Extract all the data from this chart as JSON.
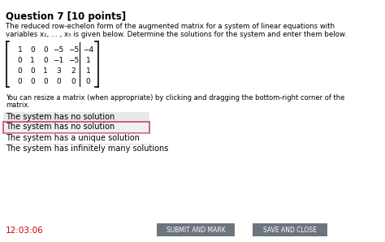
{
  "title": "Question 7 [10 points]",
  "body_text": "The reduced row-echelon form of the augmented matrix for a system of linear equations with\nvariables x₁, ... , x₅ is given below. Determine the solutions for the system and enter them below.",
  "matrix_rows": [
    [
      "1",
      "0",
      "0",
      "−5",
      "−5",
      "−4"
    ],
    [
      "0",
      "1",
      "0",
      "−1",
      "−5",
      "1"
    ],
    [
      "0",
      "0",
      "1",
      "3",
      "2",
      "1"
    ],
    [
      "0",
      "0",
      "0",
      "0",
      "0",
      "0"
    ]
  ],
  "resize_text": "You can resize a matrix (when appropriate) by clicking and dragging the bottom-right corner of the\nmatrix.",
  "dropdown_label": "The system has no solution",
  "dropdown_options": [
    "The system has no solution",
    "The system has a unique solution",
    "The system has infinitely many solutions"
  ],
  "selected_option": "The system has no solution",
  "timer": "12:03:06",
  "btn1_text": "SUBMIT AND MARK",
  "btn2_text": "SAVE AND CLOSE",
  "bg_color": "#ffffff",
  "title_color": "#000000",
  "timer_color": "#cc0000",
  "dropdown_bg": "#e8e8e8",
  "dropdown_border": "#cc4466",
  "btn_color": "#6c757d"
}
